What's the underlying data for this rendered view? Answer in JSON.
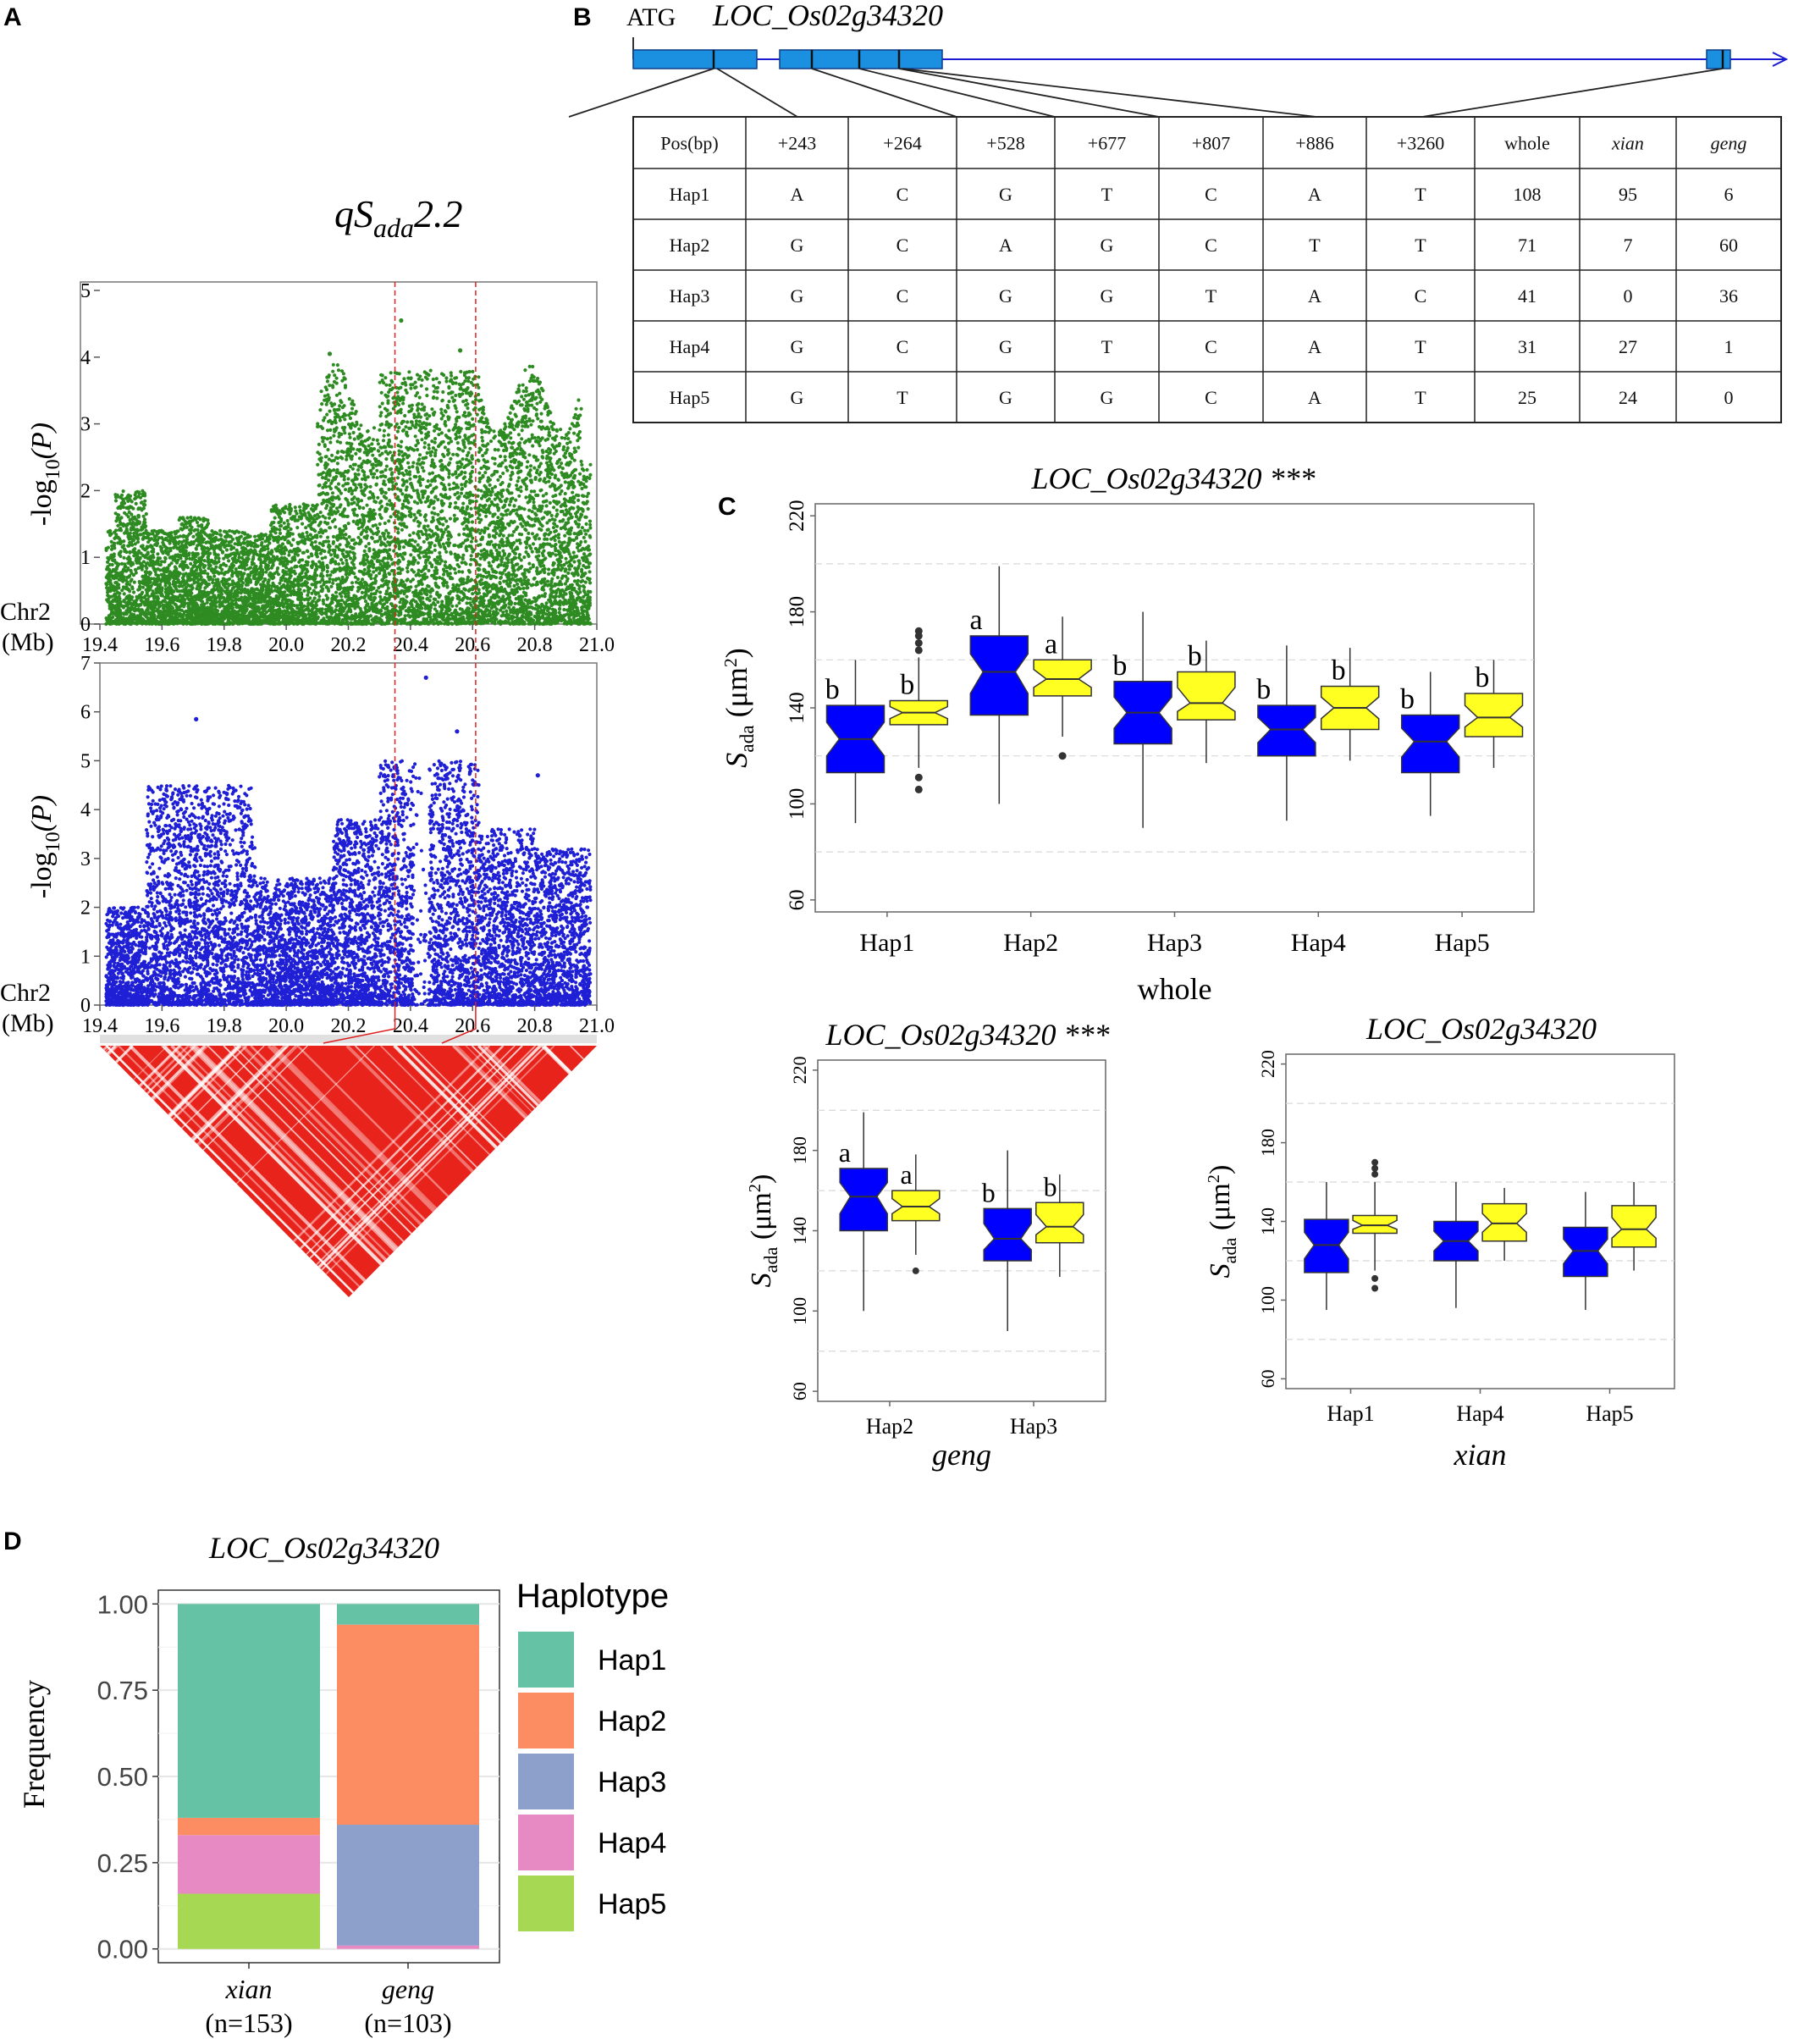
{
  "colors": {
    "green_points": "#2e8b22",
    "blue_points": "#1f1fd6",
    "ld_red": "#e8231c",
    "gene_exon": "#1b8fe0",
    "gene_line": "#1a1ad0",
    "box_blue": "#0000ff",
    "box_yellow": "#ffff22",
    "guide_red": "#dd2222",
    "hap1": "#66c2a5",
    "hap2": "#fc8d62",
    "hap3": "#8da0cb",
    "hap4": "#e78ac3",
    "hap5": "#a6d854"
  },
  "panel_labels": {
    "a": "A",
    "b": "B",
    "c": "C",
    "d": "D"
  },
  "panel_a": {
    "title_main": "qS",
    "title_sub": "ada",
    "title_tail": "2.2",
    "ylabel_main": "-log",
    "ylabel_sub": "10",
    "ylabel_tail": "(P)",
    "chr_label": "Chr2",
    "unit_label": "(Mb)",
    "x_ticks": [
      "19.4",
      "19.6",
      "19.8",
      "20.0",
      "20.2",
      "20.4",
      "20.6",
      "20.8",
      "21.0"
    ],
    "top_plot": {
      "ylim": [
        0,
        5
      ],
      "y_ticks": [
        "0",
        "1",
        "2",
        "3",
        "4",
        "5"
      ]
    },
    "bottom_plot": {
      "ylim": [
        0,
        7
      ],
      "y_ticks": [
        "0",
        "1",
        "2",
        "3",
        "4",
        "5",
        "6",
        "7"
      ]
    },
    "guide_lines_mb": [
      20.35,
      20.61
    ]
  },
  "panel_b": {
    "atg_label": "ATG",
    "gene_name": "LOC_Os02g34320",
    "table": {
      "header": [
        "Pos(bp)",
        "+243",
        "+264",
        "+528",
        "+677",
        "+807",
        "+886",
        "+3260",
        "whole",
        "xian",
        "geng"
      ],
      "rows": [
        [
          "Hap1",
          "A",
          "C",
          "G",
          "T",
          "C",
          "A",
          "T",
          "108",
          "95",
          "6"
        ],
        [
          "Hap2",
          "G",
          "C",
          "A",
          "G",
          "C",
          "T",
          "T",
          "71",
          "7",
          "60"
        ],
        [
          "Hap3",
          "G",
          "C",
          "G",
          "G",
          "T",
          "A",
          "C",
          "41",
          "0",
          "36"
        ],
        [
          "Hap4",
          "G",
          "C",
          "G",
          "T",
          "C",
          "A",
          "T",
          "31",
          "27",
          "1"
        ],
        [
          "Hap5",
          "G",
          "T",
          "G",
          "G",
          "C",
          "A",
          "T",
          "25",
          "24",
          "0"
        ]
      ]
    }
  },
  "panel_c": {
    "ylabel_main": "S",
    "ylabel_sub": "ada",
    "ylabel_tail": " (μm",
    "ylabel_sup": "2",
    "ylabel_close": ")",
    "y_ticks": [
      "60",
      "100",
      "140",
      "180",
      "220"
    ],
    "whole": {
      "title": "LOC_Os02g34320 ***",
      "xlabel": "whole",
      "categories": [
        "Hap1",
        "Hap2",
        "Hap3",
        "Hap4",
        "Hap5"
      ],
      "letters": [
        [
          "b",
          "b"
        ],
        [
          "a",
          "a"
        ],
        [
          "b",
          "b"
        ],
        [
          "b",
          "b"
        ],
        [
          "b",
          "b"
        ]
      ],
      "series": [
        {
          "name": "blue",
          "boxes": [
            {
              "min": 92,
              "q1": 113,
              "median": 127,
              "q3": 141,
              "max": 160,
              "outliers": []
            },
            {
              "min": 100,
              "q1": 137,
              "median": 155,
              "q3": 170,
              "max": 199,
              "outliers": []
            },
            {
              "min": 90,
              "q1": 125,
              "median": 138,
              "q3": 151,
              "max": 180,
              "outliers": []
            },
            {
              "min": 93,
              "q1": 120,
              "median": 131,
              "q3": 141,
              "max": 166,
              "outliers": []
            },
            {
              "min": 95,
              "q1": 113,
              "median": 126,
              "q3": 137,
              "max": 155,
              "outliers": []
            }
          ]
        },
        {
          "name": "yellow",
          "boxes": [
            {
              "min": 115,
              "q1": 133,
              "median": 138,
              "q3": 143,
              "max": 161,
              "outliers": [
                106,
                111,
                164,
                167,
                170,
                172
              ]
            },
            {
              "min": 128,
              "q1": 145,
              "median": 152,
              "q3": 160,
              "max": 178,
              "outliers": [
                120
              ]
            },
            {
              "min": 117,
              "q1": 135,
              "median": 142,
              "q3": 155,
              "max": 168,
              "outliers": []
            },
            {
              "min": 118,
              "q1": 131,
              "median": 140,
              "q3": 149,
              "max": 165,
              "outliers": []
            },
            {
              "min": 115,
              "q1": 128,
              "median": 136,
              "q3": 146,
              "max": 160,
              "outliers": []
            }
          ]
        }
      ]
    },
    "geng": {
      "title": "LOC_Os02g34320 ***",
      "xlabel": "geng",
      "categories": [
        "Hap2",
        "Hap3"
      ],
      "letters": [
        [
          "a",
          "a"
        ],
        [
          "b",
          "b"
        ]
      ],
      "series": [
        {
          "name": "blue",
          "boxes": [
            {
              "min": 100,
              "q1": 140,
              "median": 157,
              "q3": 171,
              "max": 199,
              "outliers": []
            },
            {
              "min": 90,
              "q1": 125,
              "median": 136,
              "q3": 151,
              "max": 180,
              "outliers": []
            }
          ]
        },
        {
          "name": "yellow",
          "boxes": [
            {
              "min": 128,
              "q1": 145,
              "median": 152,
              "q3": 160,
              "max": 178,
              "outliers": [
                120
              ]
            },
            {
              "min": 117,
              "q1": 134,
              "median": 142,
              "q3": 154,
              "max": 168,
              "outliers": []
            }
          ]
        }
      ]
    },
    "xian": {
      "title": "LOC_Os02g34320",
      "xlabel": "xian",
      "categories": [
        "Hap1",
        "Hap4",
        "Hap5"
      ],
      "letters": [
        [
          "",
          ""
        ],
        [
          "",
          ""
        ],
        [
          "",
          ""
        ]
      ],
      "series": [
        {
          "name": "blue",
          "boxes": [
            {
              "min": 95,
              "q1": 114,
              "median": 128,
              "q3": 141,
              "max": 160,
              "outliers": []
            },
            {
              "min": 96,
              "q1": 120,
              "median": 130,
              "q3": 140,
              "max": 160,
              "outliers": []
            },
            {
              "min": 95,
              "q1": 112,
              "median": 125,
              "q3": 137,
              "max": 155,
              "outliers": []
            }
          ]
        },
        {
          "name": "yellow",
          "boxes": [
            {
              "min": 115,
              "q1": 134,
              "median": 138,
              "q3": 143,
              "max": 160,
              "outliers": [
                106,
                111,
                164,
                167,
                170
              ]
            },
            {
              "min": 120,
              "q1": 130,
              "median": 139,
              "q3": 149,
              "max": 157,
              "outliers": []
            },
            {
              "min": 115,
              "q1": 127,
              "median": 136,
              "q3": 148,
              "max": 160,
              "outliers": []
            }
          ]
        }
      ]
    }
  },
  "panel_d": {
    "title": "LOC_Os02g34320",
    "ylabel": "Frequency",
    "y_ticks": [
      "0.00",
      "0.25",
      "0.50",
      "0.75",
      "1.00"
    ],
    "legend_title": "Haplotype",
    "legend": [
      "Hap1",
      "Hap2",
      "Hap3",
      "Hap4",
      "Hap5"
    ],
    "chart_data": {
      "type": "bar",
      "stacked": true,
      "categories": [
        "xian",
        "geng"
      ],
      "category_counts": [
        "(n=153)",
        "(n=103)"
      ],
      "ylim": [
        0,
        1
      ],
      "series": [
        {
          "name": "Hap1",
          "values": [
            0.62,
            0.06
          ]
        },
        {
          "name": "Hap2",
          "values": [
            0.05,
            0.58
          ]
        },
        {
          "name": "Hap3",
          "values": [
            0.0,
            0.35
          ]
        },
        {
          "name": "Hap4",
          "values": [
            0.17,
            0.01
          ]
        },
        {
          "name": "Hap5",
          "values": [
            0.16,
            0.0
          ]
        }
      ]
    }
  }
}
